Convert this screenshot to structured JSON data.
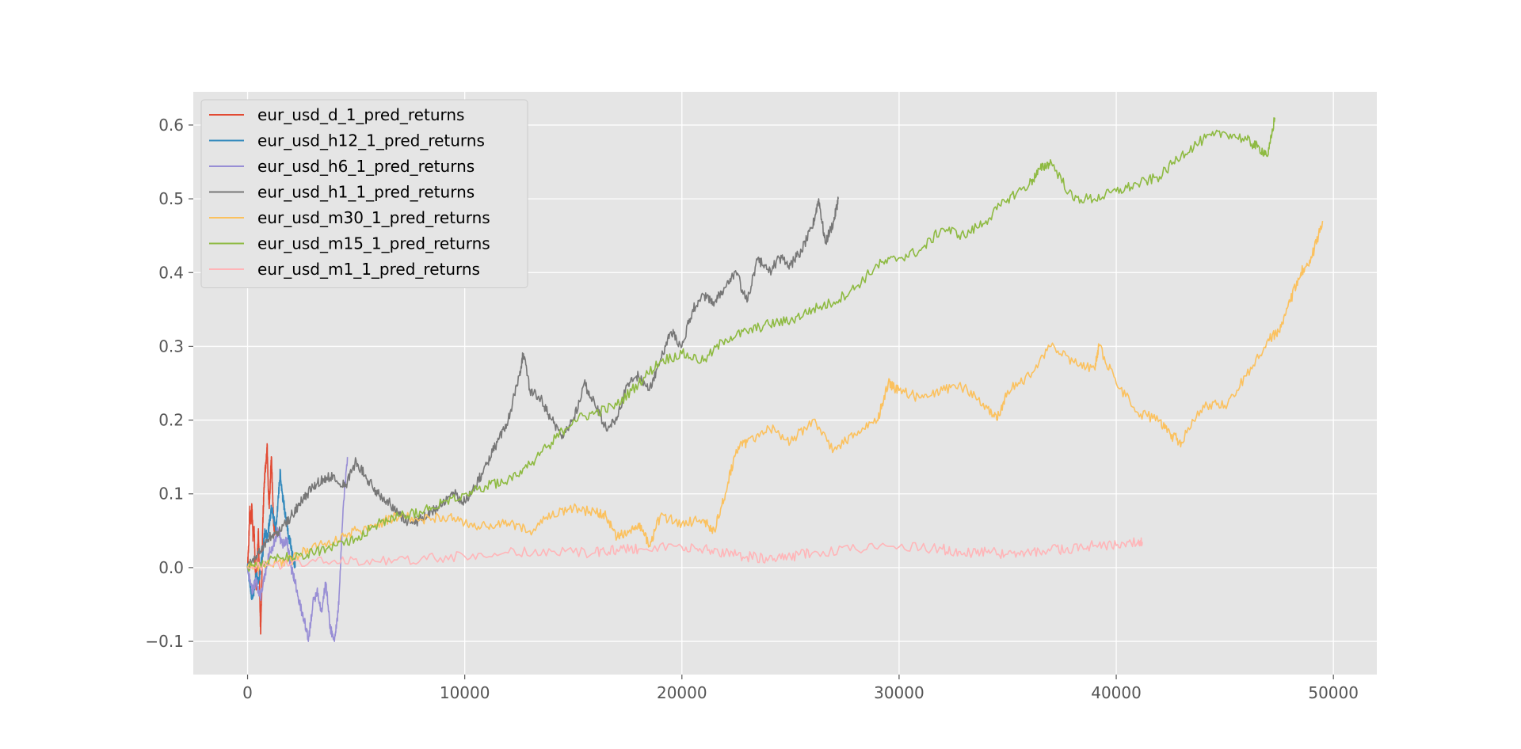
{
  "chart_data": {
    "type": "line",
    "title": "",
    "xlabel": "",
    "ylabel": "",
    "xlim": [
      -2500,
      52000
    ],
    "ylim": [
      -0.145,
      0.645
    ],
    "x_ticks": [
      0,
      10000,
      20000,
      30000,
      40000,
      50000
    ],
    "x_tick_labels": [
      "0",
      "10000",
      "20000",
      "30000",
      "40000",
      "50000"
    ],
    "y_ticks": [
      -0.1,
      0.0,
      0.1,
      0.2,
      0.3,
      0.4,
      0.5,
      0.6
    ],
    "y_tick_labels": [
      "−0.1",
      "0.0",
      "0.1",
      "0.2",
      "0.3",
      "0.4",
      "0.5",
      "0.6"
    ],
    "grid": true,
    "legend_position": "upper-left",
    "series": [
      {
        "name": "eur_usd_d_1_pred_returns",
        "color": "#E24A33",
        "x": [
          0,
          50,
          100,
          150,
          200,
          250,
          300,
          350,
          400,
          450,
          500,
          550,
          600,
          650,
          700,
          750,
          800,
          850,
          900,
          950,
          1000,
          1050,
          1100,
          1150,
          1200,
          1250
        ],
        "y": [
          0.0,
          0.03,
          0.08,
          0.06,
          0.085,
          0.04,
          0.055,
          0.0,
          -0.03,
          0.02,
          0.05,
          -0.02,
          -0.09,
          -0.03,
          0.06,
          0.1,
          0.13,
          0.14,
          0.168,
          0.11,
          0.08,
          0.12,
          0.15,
          0.1,
          0.06,
          0.05
        ]
      },
      {
        "name": "eur_usd_h12_1_pred_returns",
        "color": "#348ABD",
        "x": [
          0,
          100,
          200,
          300,
          400,
          500,
          600,
          700,
          800,
          900,
          1000,
          1100,
          1200,
          1300,
          1400,
          1500,
          1600,
          1700,
          1800,
          1900,
          2000,
          2100,
          2200
        ],
        "y": [
          0.0,
          -0.02,
          -0.04,
          -0.03,
          -0.01,
          -0.02,
          0.0,
          0.02,
          0.05,
          0.04,
          0.06,
          0.08,
          0.07,
          0.05,
          0.09,
          0.13,
          0.1,
          0.08,
          0.06,
          0.04,
          0.03,
          0.01,
          0.0
        ]
      },
      {
        "name": "eur_usd_h6_1_pred_returns",
        "color": "#988ED5",
        "x": [
          0,
          200,
          400,
          600,
          800,
          1000,
          1200,
          1400,
          1600,
          1800,
          2000,
          2200,
          2400,
          2600,
          2800,
          3000,
          3200,
          3400,
          3600,
          3800,
          4000,
          4200,
          4400,
          4600
        ],
        "y": [
          0.0,
          -0.03,
          -0.02,
          -0.04,
          -0.01,
          0.02,
          0.03,
          0.05,
          0.03,
          0.04,
          0.0,
          -0.02,
          -0.05,
          -0.07,
          -0.1,
          -0.05,
          -0.03,
          -0.06,
          -0.02,
          -0.08,
          -0.1,
          -0.05,
          0.08,
          0.15
        ]
      },
      {
        "name": "eur_usd_h1_1_pred_returns",
        "color": "#777777",
        "x": [
          0,
          500,
          1000,
          1500,
          2000,
          2500,
          3000,
          3500,
          4000,
          4500,
          5000,
          5500,
          6000,
          6500,
          7000,
          7500,
          8000,
          8500,
          9000,
          9500,
          10000,
          10500,
          11000,
          11500,
          12000,
          12500,
          12700,
          13000,
          13500,
          14000,
          14500,
          15000,
          15500,
          16000,
          16500,
          17000,
          17500,
          18000,
          18500,
          19000,
          19500,
          20000,
          20500,
          21000,
          21500,
          22000,
          22500,
          23000,
          23500,
          24000,
          24500,
          25000,
          25500,
          26000,
          26300,
          26600,
          27000,
          27200
        ],
        "y": [
          0.0,
          0.02,
          0.04,
          0.05,
          0.07,
          0.09,
          0.11,
          0.12,
          0.125,
          0.11,
          0.145,
          0.12,
          0.1,
          0.09,
          0.07,
          0.06,
          0.065,
          0.075,
          0.09,
          0.1,
          0.09,
          0.11,
          0.14,
          0.17,
          0.2,
          0.26,
          0.29,
          0.24,
          0.23,
          0.2,
          0.18,
          0.2,
          0.25,
          0.22,
          0.19,
          0.2,
          0.25,
          0.26,
          0.24,
          0.28,
          0.32,
          0.3,
          0.35,
          0.37,
          0.36,
          0.38,
          0.4,
          0.36,
          0.42,
          0.4,
          0.42,
          0.41,
          0.43,
          0.46,
          0.5,
          0.44,
          0.47,
          0.5
        ]
      },
      {
        "name": "eur_usd_m30_1_pred_returns",
        "color": "#FBC15E",
        "x": [
          0,
          1000,
          2000,
          3000,
          4000,
          5000,
          6000,
          7000,
          8000,
          9000,
          10000,
          11000,
          12000,
          13000,
          14000,
          15000,
          16000,
          16500,
          17000,
          17500,
          18000,
          18500,
          19000,
          20000,
          21000,
          21500,
          22000,
          22500,
          23000,
          24000,
          25000,
          26000,
          27000,
          28000,
          29000,
          29500,
          30000,
          31000,
          32000,
          33000,
          34000,
          34500,
          35000,
          36000,
          37000,
          38000,
          39000,
          39200,
          40000,
          41000,
          42000,
          42500,
          43000,
          44000,
          45000,
          46000,
          47000,
          47500,
          48000,
          48500,
          49000,
          49500
        ],
        "y": [
          0.0,
          0.005,
          0.01,
          0.03,
          0.035,
          0.05,
          0.06,
          0.07,
          0.065,
          0.07,
          0.06,
          0.055,
          0.06,
          0.05,
          0.07,
          0.08,
          0.075,
          0.07,
          0.04,
          0.05,
          0.06,
          0.03,
          0.07,
          0.06,
          0.065,
          0.05,
          0.1,
          0.16,
          0.17,
          0.19,
          0.17,
          0.2,
          0.16,
          0.18,
          0.2,
          0.25,
          0.24,
          0.23,
          0.24,
          0.245,
          0.22,
          0.2,
          0.24,
          0.26,
          0.3,
          0.28,
          0.27,
          0.3,
          0.25,
          0.21,
          0.2,
          0.18,
          0.17,
          0.22,
          0.22,
          0.26,
          0.31,
          0.32,
          0.36,
          0.4,
          0.42,
          0.47
        ]
      },
      {
        "name": "eur_usd_m15_1_pred_returns",
        "color": "#8EBA42",
        "x": [
          0,
          1000,
          2000,
          3000,
          4000,
          5000,
          6000,
          7000,
          8000,
          9000,
          10000,
          11000,
          12000,
          13000,
          14000,
          15000,
          16000,
          17000,
          18000,
          19000,
          20000,
          21000,
          22000,
          23000,
          24000,
          25000,
          26000,
          27000,
          28000,
          29000,
          30000,
          31000,
          32000,
          33000,
          34000,
          35000,
          36000,
          36500,
          37000,
          38000,
          39000,
          40000,
          41000,
          42000,
          43000,
          44000,
          45000,
          46000,
          46500,
          47000,
          47300
        ],
        "y": [
          0.0,
          0.01,
          0.015,
          0.02,
          0.03,
          0.04,
          0.06,
          0.07,
          0.075,
          0.09,
          0.1,
          0.11,
          0.12,
          0.14,
          0.17,
          0.2,
          0.21,
          0.22,
          0.25,
          0.28,
          0.29,
          0.28,
          0.31,
          0.32,
          0.33,
          0.335,
          0.35,
          0.36,
          0.38,
          0.41,
          0.42,
          0.43,
          0.46,
          0.45,
          0.47,
          0.5,
          0.52,
          0.54,
          0.55,
          0.5,
          0.5,
          0.51,
          0.52,
          0.53,
          0.56,
          0.58,
          0.59,
          0.58,
          0.57,
          0.56,
          0.61
        ]
      },
      {
        "name": "eur_usd_m1_1_pred_returns",
        "color": "#FFB5B8",
        "x": [
          0,
          2000,
          4000,
          6000,
          8000,
          10000,
          12000,
          14000,
          16000,
          17000,
          18000,
          20000,
          21000,
          22000,
          23000,
          24000,
          25000,
          26000,
          28000,
          30000,
          32000,
          33000,
          34000,
          35000,
          36000,
          37000,
          38000,
          39000,
          40000,
          41000,
          41200
        ],
        "y": [
          0.0,
          0.005,
          0.01,
          0.008,
          0.012,
          0.015,
          0.02,
          0.022,
          0.02,
          0.025,
          0.025,
          0.028,
          0.025,
          0.02,
          0.015,
          0.012,
          0.015,
          0.02,
          0.025,
          0.028,
          0.025,
          0.02,
          0.022,
          0.018,
          0.02,
          0.025,
          0.025,
          0.03,
          0.03,
          0.035,
          0.035
        ]
      }
    ]
  }
}
